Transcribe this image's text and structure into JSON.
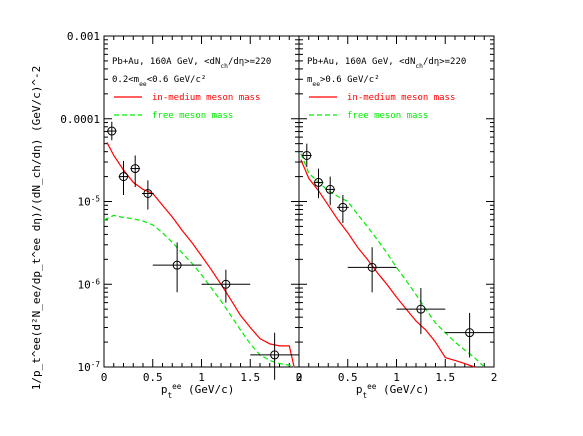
{
  "chart_data": [
    {
      "type": "line",
      "panel": "left",
      "y_scale": "log",
      "xlim": [
        0,
        2
      ],
      "ylim": [
        1e-07,
        0.001
      ],
      "xlabel": "p_t^ee (GeV/c)",
      "ylabel": "1/p_t^ee(d²N_ee/dp_t^ee dη)/(dN_ch/dη)  (GeV/c)^-2",
      "x_ticks": [
        "0",
        "0.5",
        "1",
        "1.5",
        "2"
      ],
      "y_ticks": [
        "10^-7",
        "10^-6",
        "10^-5",
        "0.0001",
        "0.001"
      ],
      "annotation_lines": [
        "Pb+Au, 160A GeV, <dN_ch/dη>=220",
        "0.2<m_ee<0.6 GeV/c²"
      ],
      "legend": [
        "in-medium meson mass",
        "free meson mass"
      ],
      "series": [
        {
          "name": "in-medium meson mass",
          "color": "#ff0000",
          "style": "solid",
          "x": [
            0.03,
            0.1,
            0.2,
            0.3,
            0.4,
            0.5,
            0.6,
            0.7,
            0.8,
            0.9,
            1.0,
            1.1,
            1.2,
            1.3,
            1.4,
            1.5,
            1.6,
            1.7,
            1.8,
            1.9,
            1.95
          ],
          "y": [
            5.2e-05,
            3.6e-05,
            2.4e-05,
            1.7e-05,
            1.4e-05,
            1.25e-05,
            9e-06,
            6.5e-06,
            4.5e-06,
            3.2e-06,
            2.2e-06,
            1.5e-06,
            1e-06,
            6.5e-07,
            4.2e-07,
            3e-07,
            2.2e-07,
            1.9e-07,
            1.8e-07,
            1.8e-07,
            1e-07
          ]
        },
        {
          "name": "free meson mass",
          "color": "#00ee00",
          "style": "dashed",
          "x": [
            0.0,
            0.1,
            0.2,
            0.3,
            0.4,
            0.5,
            0.6,
            0.7,
            0.8,
            0.9,
            1.0,
            1.1,
            1.2,
            1.3,
            1.4,
            1.5,
            1.6,
            1.7,
            1.8,
            1.9,
            1.95
          ],
          "y": [
            6e-06,
            6.8e-06,
            6.4e-06,
            6.2e-06,
            5.8e-06,
            5.2e-06,
            4.2e-06,
            3.2e-06,
            2.4e-06,
            1.8e-06,
            1.3e-06,
            9e-07,
            6.3e-07,
            4.2e-07,
            2.8e-07,
            1.9e-07,
            1.4e-07,
            1.2e-07,
            1.1e-07,
            1.05e-07,
            1e-07
          ]
        }
      ],
      "data_points": {
        "marker": "open-circle",
        "x": [
          0.08,
          0.2,
          0.32,
          0.45,
          0.75,
          1.25,
          1.75
        ],
        "y": [
          7.1e-05,
          2e-05,
          2.5e-05,
          1.25e-05,
          1.7e-06,
          1e-06,
          1.4e-07
        ],
        "x_err": [
          0.05,
          0.05,
          0.05,
          0.06,
          0.25,
          0.25,
          0.25
        ],
        "y_low": [
          5.5e-05,
          1.2e-05,
          1.5e-05,
          8e-06,
          8e-07,
          6e-07,
          7e-08
        ],
        "y_high": [
          9.2e-05,
          3.1e-05,
          3.6e-05,
          1.8e-05,
          3.2e-06,
          1.5e-06,
          2.6e-07
        ]
      }
    },
    {
      "type": "line",
      "panel": "right",
      "y_scale": "log",
      "xlim": [
        0,
        2
      ],
      "ylim": [
        1e-07,
        0.001
      ],
      "xlabel": "p_t^ee (GeV/c)",
      "x_ticks": [
        "0",
        "0.5",
        "1",
        "1.5",
        "2"
      ],
      "annotation_lines": [
        "Pb+Au, 160A GeV, <dN_ch/dη>=220",
        "m_ee>0.6 GeV/c²"
      ],
      "legend": [
        "in-medium meson mass",
        "free meson mass"
      ],
      "series": [
        {
          "name": "in-medium meson mass",
          "color": "#ff0000",
          "style": "solid",
          "x": [
            0.02,
            0.1,
            0.2,
            0.3,
            0.4,
            0.5,
            0.6,
            0.7,
            0.8,
            0.9,
            1.0,
            1.1,
            1.2,
            1.3,
            1.4,
            1.5,
            1.6,
            1.7,
            1.8
          ],
          "y": [
            3.2e-05,
            1.9e-05,
            1.35e-05,
            9e-06,
            6e-06,
            4.2e-06,
            2.8e-06,
            2e-06,
            1.4e-06,
            1e-06,
            7e-07,
            5e-07,
            3.6e-07,
            2.8e-07,
            2e-07,
            1.3e-07,
            1.2e-07,
            1.1e-07,
            1e-07
          ]
        },
        {
          "name": "free meson mass",
          "color": "#00ee00",
          "style": "dashed",
          "x": [
            0.02,
            0.1,
            0.2,
            0.3,
            0.4,
            0.5,
            0.6,
            0.7,
            0.8,
            0.9,
            1.0,
            1.1,
            1.2,
            1.3,
            1.4,
            1.5,
            1.6,
            1.7,
            1.8,
            1.9
          ],
          "y": [
            3.8e-05,
            2.2e-05,
            1.7e-05,
            1.35e-05,
            1.15e-05,
            1e-05,
            7e-06,
            5e-06,
            3.5e-06,
            2.4e-06,
            1.6e-06,
            1.1e-06,
            7.5e-07,
            5e-07,
            3.4e-07,
            2.6e-07,
            2e-07,
            1.6e-07,
            1.3e-07,
            1e-07
          ]
        }
      ],
      "data_points": {
        "marker": "open-circle",
        "x": [
          0.08,
          0.2,
          0.32,
          0.45,
          0.75,
          1.25,
          1.75
        ],
        "y": [
          3.6e-05,
          1.7e-05,
          1.4e-05,
          8.5e-06,
          1.6e-06,
          5e-07,
          2.6e-07
        ],
        "x_err": [
          0.05,
          0.05,
          0.05,
          0.06,
          0.25,
          0.25,
          0.25
        ],
        "y_low": [
          2.6e-05,
          1.1e-05,
          9e-06,
          5.5e-06,
          8e-07,
          2.5e-07,
          1.3e-07
        ],
        "y_high": [
          5e-05,
          2.5e-05,
          2e-05,
          1.2e-05,
          2.8e-06,
          9e-07,
          4.5e-07
        ]
      }
    }
  ]
}
